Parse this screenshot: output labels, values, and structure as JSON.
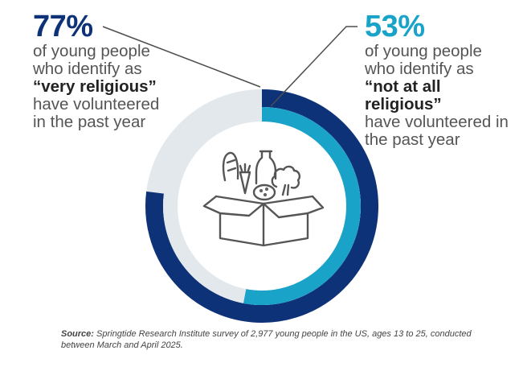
{
  "chart_data": {
    "type": "pie",
    "title": "",
    "series": [
      {
        "name": "very religious",
        "value": 77,
        "label": "77%",
        "text_lines": [
          "of young people",
          "who identify as"
        ],
        "emphasis": "“very religious”",
        "text_lines_after": [
          "have volunteered",
          "in the past year"
        ],
        "color": "#0d3278"
      },
      {
        "name": "not at all religious",
        "value": 53,
        "label": "53%",
        "text_lines": [
          "of young people",
          "who identify as"
        ],
        "emphasis": "“not at all religious”",
        "text_lines_after": [
          "have volunteered in",
          "the past year"
        ],
        "color": "#1aa3c8"
      }
    ],
    "track_color": "#e3e8ec",
    "center_icon": "grocery-box-icon"
  },
  "source": {
    "label": "Source:",
    "text": "Springtide Research Institute survey of 2,977 young people in the US, ages 13 to 25, conducted between March and April 2025."
  }
}
